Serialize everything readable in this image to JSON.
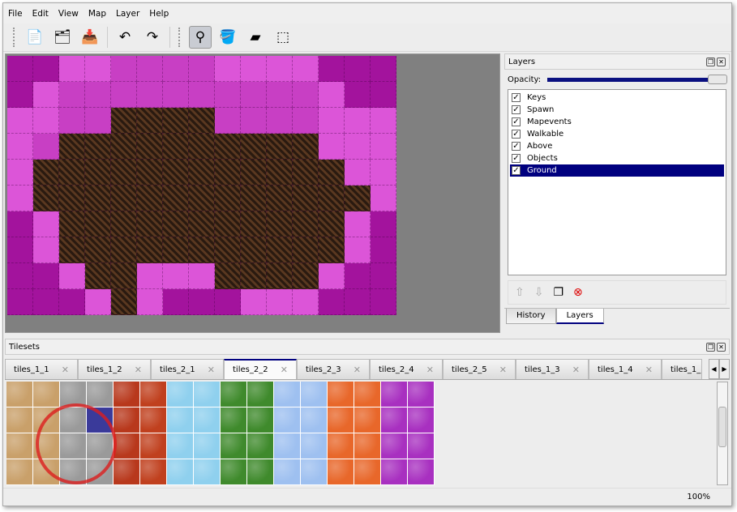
{
  "menu": [
    "File",
    "Edit",
    "View",
    "Map",
    "Layer",
    "Help"
  ],
  "toolbar": [
    {
      "icon": "new-file-icon",
      "glyph": "📄"
    },
    {
      "icon": "open-folder-icon",
      "glyph": "🗂"
    },
    {
      "icon": "save-icon",
      "glyph": "📥"
    },
    {
      "icon": "undo-icon",
      "glyph": "↶"
    },
    {
      "icon": "redo-icon",
      "glyph": "↷"
    },
    {
      "icon": "stamp-brush-icon",
      "glyph": "⚲",
      "active": true
    },
    {
      "icon": "bucket-fill-icon",
      "glyph": "🪣"
    },
    {
      "icon": "eraser-icon",
      "glyph": "▰"
    },
    {
      "icon": "rectangle-select-icon",
      "glyph": "⬚"
    }
  ],
  "map": {
    "rows": [
      "DDLLMMMMLLLLDDD",
      "DLMMMMMMMMMMLDD",
      "LLMMBBBBMMMMLLL",
      "LMBBBBBBBBBBLLL",
      "LBBBBBBBBBBBBLL",
      "LBBBBBBBBBBBBBL",
      "DLBBBBBBBBBBBLD",
      "DLBBBBBBBBBBBLD",
      "DDLBBLLLBBBBLDD",
      "DDDLBLDDDLLLDDD"
    ],
    "colors": {
      "D": "#a3139d",
      "L": "#dc55d8",
      "M": "#c83fc4",
      "B": "#3a2518"
    }
  },
  "layers": {
    "title": "Layers",
    "opacity_label": "Opacity:",
    "opacity": 1.0,
    "items": [
      "Keys",
      "Spawn",
      "Mapevents",
      "Walkable",
      "Above",
      "Objects",
      "Ground"
    ],
    "selected": "Ground"
  },
  "dock_tabs": [
    "History",
    "Layers"
  ],
  "tilesets": {
    "title": "Tilesets",
    "tabs": [
      "tiles_1_1",
      "tiles_1_2",
      "tiles_2_1",
      "tiles_2_2",
      "tiles_2_3",
      "tiles_2_4",
      "tiles_2_5",
      "tiles_1_3",
      "tiles_1_4",
      "tiles_1_"
    ],
    "active": "tiles_2_2",
    "column_colors": [
      "#c9a06a",
      "#c9a06a",
      "#9a9a9a",
      "#9a9a9a",
      "#b8381c",
      "#c0401e",
      "#8fd0ee",
      "#8fd0ee",
      "#3f8a2c",
      "#3f8a2c",
      "#9ec0f0",
      "#9ec0f0",
      "#e8672a",
      "#e8672a",
      "#a830c0",
      "#a830c0"
    ],
    "selected_tile_color": "#3a3a9a"
  },
  "status": {
    "zoom": "100%"
  }
}
